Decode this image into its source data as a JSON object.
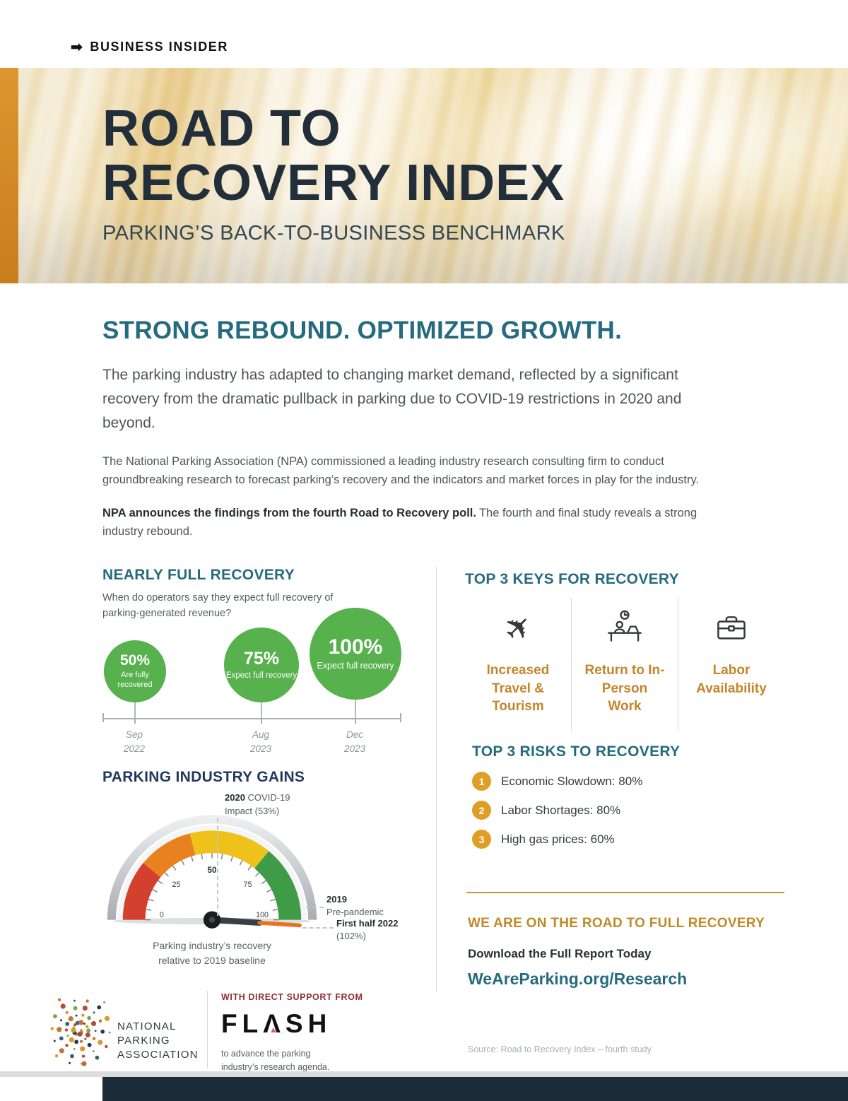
{
  "masthead": {
    "brand": "BUSINESS INSIDER"
  },
  "hero": {
    "title_line1": "ROAD TO",
    "title_line2": "RECOVERY INDEX",
    "subtitle": "PARKING’S BACK-TO-BUSINESS BENCHMARK"
  },
  "intro": {
    "heading": "STRONG REBOUND. OPTIMIZED GROWTH.",
    "lead": "The parking industry has adapted to changing market demand, reflected by a significant recovery from the dramatic pullback in parking due to COVID-19 restrictions in 2020 and beyond.",
    "body": "The National Parking Association (NPA) commissioned a leading industry research consulting firm to conduct groundbreaking research to forecast parking’s recovery and the indicators and market forces in play for the industry.",
    "announcement_bold": "NPA announces the findings from the fourth Road to Recovery poll.",
    "announcement_rest": "The fourth and final study reveals a strong industry rebound."
  },
  "recovery": {
    "heading": "NEARLY FULL RECOVERY",
    "question": "When do operators say they expect full recovery of parking-generated revenue?",
    "milestones": [
      {
        "value": "50%",
        "label": "Are fully recovered",
        "month": "Sep",
        "year": "2022"
      },
      {
        "value": "75%",
        "label": "Expect full recovery",
        "month": "Aug",
        "year": "2023"
      },
      {
        "value": "100%",
        "label": "Expect full recovery",
        "month": "Dec",
        "year": "2023"
      }
    ]
  },
  "gains": {
    "heading": "PARKING INDUSTRY GAINS",
    "tick_labels": [
      "0",
      "25",
      "50",
      "75",
      "100"
    ],
    "anno_covid_year": "2020",
    "anno_covid_line1": "COVID-19",
    "anno_covid_line2": "Impact (53%)",
    "anno_2019_year": "2019",
    "anno_2019_label": "Pre-pandemic",
    "anno_2022_label": "First half 2022",
    "anno_2022_value": "(102%)",
    "caption_line1": "Parking industry’s recovery",
    "caption_line2": "relative to 2019 baseline"
  },
  "keys": {
    "heading": "TOP 3 KEYS FOR RECOVERY",
    "items": [
      {
        "icon": "airplane-icon",
        "label": "Increased Travel & Tourism"
      },
      {
        "icon": "in-person-work-icon",
        "label": "Return to In-Person Work"
      },
      {
        "icon": "briefcase-icon",
        "label": "Labor Availability"
      }
    ]
  },
  "risks": {
    "heading": "TOP 3 RISKS TO RECOVERY",
    "items": [
      {
        "number": "1",
        "text": "Economic Slowdown: 80%"
      },
      {
        "number": "2",
        "text": "Labor Shortages: 80%"
      },
      {
        "number": "3",
        "text": "High gas prices: 60%"
      }
    ]
  },
  "cta": {
    "heading": "WE ARE ON THE ROAD TO FULL RECOVERY",
    "download": "Download the Full Report Today",
    "url": "WeAreParking.org/Research",
    "source": "Source: Road to Recovery Index – fourth study"
  },
  "footer": {
    "support_label": "WITH DIRECT SUPPORT FROM",
    "sponsor": "FLASH",
    "tagline_line1": "to advance the parking",
    "tagline_line2": "industry’s research agenda.",
    "npa_lines": [
      "NATIONAL",
      "PARKING",
      "ASSOCIATION"
    ],
    "trademark": "™",
    "npa_dot_colors": [
      "#1d3b53",
      "#d79a2b",
      "#7fa341",
      "#b94a3c",
      "#35607a",
      "#c8742f"
    ]
  },
  "colors": {
    "teal": "#256b80",
    "navy": "#21395d",
    "gold": "#c8942d",
    "green": "#57b14d",
    "accent_bar": "#d78a28"
  },
  "chart_data": [
    {
      "type": "bubble",
      "title": "NEARLY FULL RECOVERY",
      "subtitle": "When do operators say they expect full recovery of parking-generated revenue?",
      "x": [
        "Sep 2022",
        "Aug 2023",
        "Dec 2023"
      ],
      "values": [
        50,
        75,
        100
      ],
      "labels": [
        "Are fully recovered",
        "Expect full recovery",
        "Expect full recovery"
      ],
      "color": "#57b14d",
      "layout": "bubbles anchored to horizontal timeline, size proportional to value"
    },
    {
      "type": "gauge",
      "title": "PARKING INDUSTRY GAINS",
      "min": 0,
      "max": 100,
      "ticks": [
        0,
        25,
        50,
        75,
        100
      ],
      "needle_value": 102,
      "segment_colors": [
        "#d4402e",
        "#e8821e",
        "#eec11b",
        "#3f9b45"
      ],
      "annotations": [
        {
          "label": "2020 COVID-19 Impact",
          "value": 53
        },
        {
          "label": "2019 Pre-pandemic",
          "value": 100
        },
        {
          "label": "First half 2022",
          "value": 102
        }
      ],
      "caption": "Parking industry's recovery relative to 2019 baseline"
    }
  ]
}
